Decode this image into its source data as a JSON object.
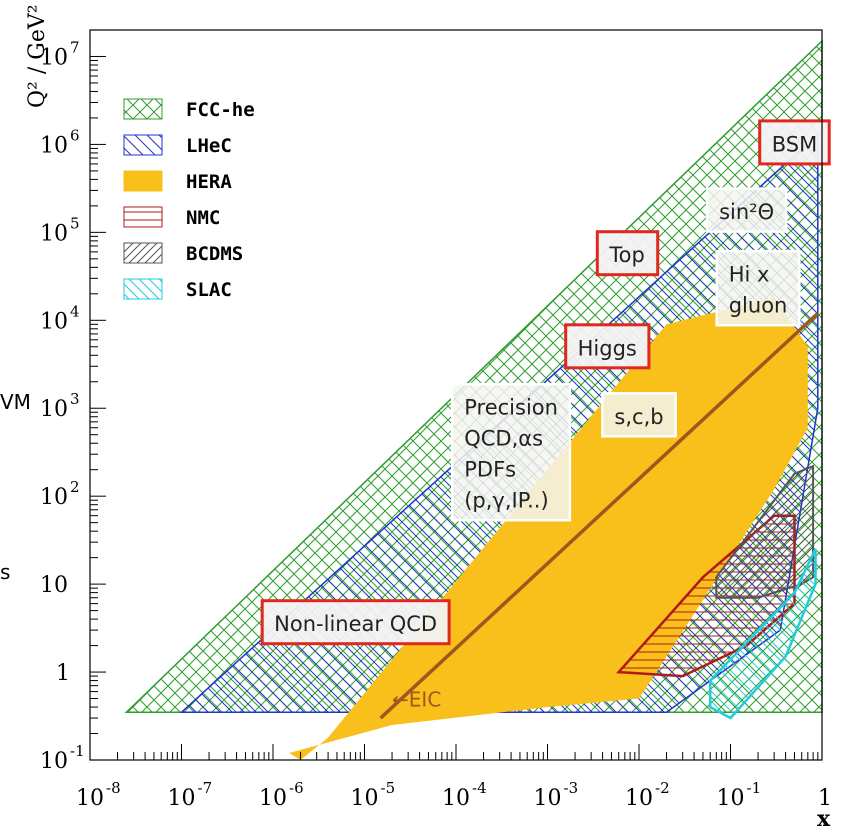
{
  "chart_data": {
    "type": "area",
    "title": "",
    "xlabel": "x",
    "ylabel": "Q² / GeV²",
    "x_scale": "log",
    "y_scale": "log",
    "xlim": [
      1e-08,
      1
    ],
    "ylim": [
      0.1,
      20000000
    ],
    "x_ticks": [
      {
        "value": 1e-08,
        "base": "10",
        "exp": "-8"
      },
      {
        "value": 1e-07,
        "base": "10",
        "exp": "-7"
      },
      {
        "value": 1e-06,
        "base": "10",
        "exp": "-6"
      },
      {
        "value": 1e-05,
        "base": "10",
        "exp": "-5"
      },
      {
        "value": 0.0001,
        "base": "10",
        "exp": "-4"
      },
      {
        "value": 0.001,
        "base": "10",
        "exp": "-3"
      },
      {
        "value": 0.01,
        "base": "10",
        "exp": "-2"
      },
      {
        "value": 0.1,
        "base": "10",
        "exp": "-1"
      },
      {
        "value": 1,
        "base": "1",
        "exp": ""
      }
    ],
    "y_ticks": [
      {
        "value": 0.1,
        "base": "10",
        "exp": "-1"
      },
      {
        "value": 1,
        "base": "1",
        "exp": ""
      },
      {
        "value": 10,
        "base": "10",
        "exp": ""
      },
      {
        "value": 100,
        "base": "10",
        "exp": "2"
      },
      {
        "value": 1000,
        "base": "10",
        "exp": "3"
      },
      {
        "value": 10000,
        "base": "10",
        "exp": "4"
      },
      {
        "value": 100000,
        "base": "10",
        "exp": "5"
      },
      {
        "value": 1000000,
        "base": "10",
        "exp": "6"
      },
      {
        "value": 10000000,
        "base": "10",
        "exp": "7"
      }
    ],
    "legend_position": "top-left",
    "grid": false,
    "series": [
      {
        "name": "FCC-he",
        "color": "#2e9e2e",
        "pattern": "crosshatch",
        "points": [
          [
            2.5e-08,
            0.35
          ],
          [
            1,
            0.35
          ],
          [
            1,
            15000000
          ]
        ]
      },
      {
        "name": "LHeC",
        "color": "#2233cc",
        "pattern": "diagonal",
        "points": [
          [
            1e-07,
            0.35
          ],
          [
            0.02,
            0.35
          ],
          [
            0.35,
            3
          ],
          [
            0.9,
            1000
          ],
          [
            0.9,
            1300000
          ]
        ]
      },
      {
        "name": "HERA",
        "color": "#f9bf1a",
        "pattern": "solid",
        "points": [
          [
            2e-06,
            0.1
          ],
          [
            4e-06,
            0.18
          ],
          [
            0.02,
            9000
          ],
          [
            0.3,
            18000
          ],
          [
            0.7,
            5000
          ],
          [
            0.7,
            600
          ],
          [
            0.3,
            120
          ],
          [
            0.02,
            1.5
          ],
          [
            0.01,
            0.5
          ],
          [
            0.001,
            0.4
          ],
          [
            2e-05,
            0.25
          ],
          [
            1.5e-06,
            0.12
          ]
        ]
      },
      {
        "name": "NMC",
        "color": "#b01a1a",
        "pattern": "horizontal",
        "points": [
          [
            0.006,
            1
          ],
          [
            0.05,
            12
          ],
          [
            0.3,
            60
          ],
          [
            0.5,
            60
          ],
          [
            0.5,
            6
          ],
          [
            0.15,
            2
          ],
          [
            0.03,
            0.9
          ]
        ]
      },
      {
        "name": "BCDMS",
        "color": "#555555",
        "pattern": "diagonal-dense",
        "points": [
          [
            0.07,
            7
          ],
          [
            0.07,
            12
          ],
          [
            0.5,
            180
          ],
          [
            0.8,
            220
          ],
          [
            0.8,
            12
          ],
          [
            0.6,
            10
          ],
          [
            0.2,
            7
          ]
        ]
      },
      {
        "name": "SLAC",
        "color": "#22ccdd",
        "pattern": "diagonal",
        "points": [
          [
            0.06,
            0.4
          ],
          [
            0.06,
            0.8
          ],
          [
            0.5,
            8
          ],
          [
            0.85,
            25
          ],
          [
            0.85,
            10
          ],
          [
            0.4,
            1.5
          ],
          [
            0.1,
            0.3
          ]
        ]
      }
    ],
    "line": {
      "label": "←EIC",
      "color": "#a0561e",
      "points": [
        [
          1.5e-05,
          0.3
        ],
        [
          0.9,
          12000
        ]
      ]
    },
    "annotations": [
      {
        "lines": [
          "BSM"
        ],
        "style": "red",
        "x": 0.5,
        "y": 1000000
      },
      {
        "lines": [
          "sin²Θ"
        ],
        "style": "light",
        "x": 0.15,
        "y": 170000
      },
      {
        "lines": [
          "Top"
        ],
        "style": "red",
        "x": 0.0075,
        "y": 55000
      },
      {
        "lines": [
          "Hi x",
          "gluon"
        ],
        "style": "light",
        "x": 0.2,
        "y": 22000
      },
      {
        "lines": [
          "Higgs"
        ],
        "style": "red",
        "x": 0.0045,
        "y": 4800
      },
      {
        "lines": [
          "Precision",
          "QCD,αs",
          "PDFs",
          "(p,γ,IP..)"
        ],
        "style": "light",
        "x": 0.0004,
        "y": 300
      },
      {
        "lines": [
          "s,c,b"
        ],
        "style": "light",
        "x": 0.01,
        "y": 800
      },
      {
        "lines": [
          "Non-linear QCD"
        ],
        "style": "red",
        "x": 8e-06,
        "y": 3.5
      }
    ],
    "edge_text": [
      "VM",
      "s"
    ]
  }
}
